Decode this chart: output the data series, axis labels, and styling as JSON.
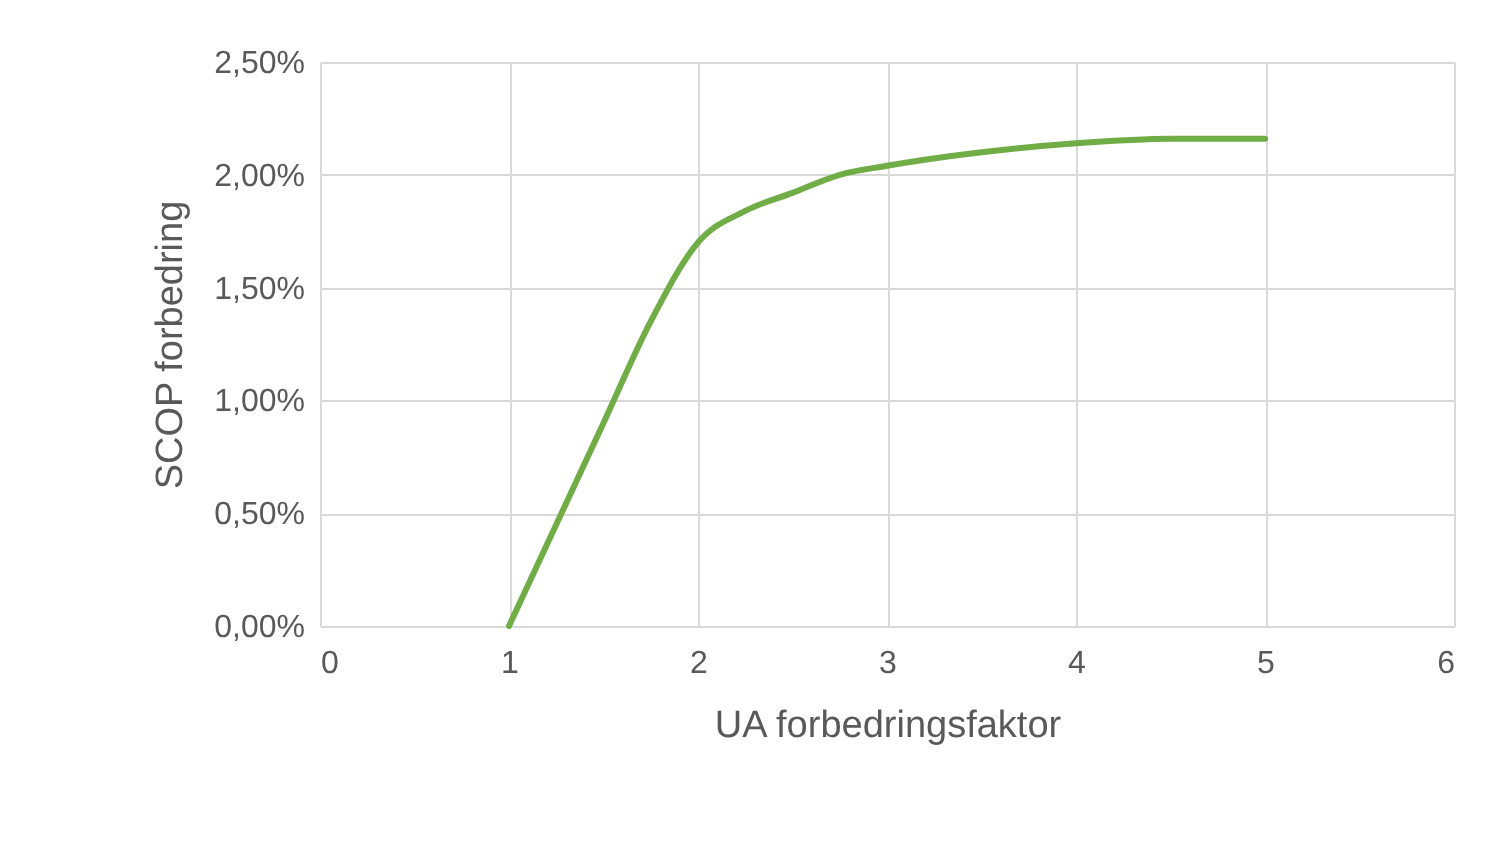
{
  "chart_data": {
    "type": "line",
    "xlabel": "UA forbedringsfaktor",
    "ylabel": "SCOP forbedring",
    "x": [
      1,
      1.25,
      1.5,
      1.75,
      2,
      2.25,
      2.5,
      2.75,
      3,
      3.5,
      4,
      4.5,
      5
    ],
    "series": [
      {
        "color": "#70ad47",
        "values": [
          0,
          0.45,
          0.9,
          1.35,
          1.7,
          1.84,
          1.92,
          2.0,
          2.04,
          2.1,
          2.14,
          2.16,
          2.16
        ]
      }
    ],
    "xlim": [
      0,
      6
    ],
    "xticks": [
      0,
      1,
      2,
      3,
      4,
      5,
      6
    ],
    "ylim": [
      0,
      2.5
    ],
    "yticks": [
      {
        "value": 0,
        "label": "0,00%"
      },
      {
        "value": 0.5,
        "label": "0,50%"
      },
      {
        "value": 1,
        "label": "1,00%"
      },
      {
        "value": 1.5,
        "label": "1,50%"
      },
      {
        "value": 2,
        "label": "2,00%"
      },
      {
        "value": 2.5,
        "label": "2,50%"
      }
    ],
    "grid": true,
    "marker": "none",
    "line_style": "solid"
  }
}
